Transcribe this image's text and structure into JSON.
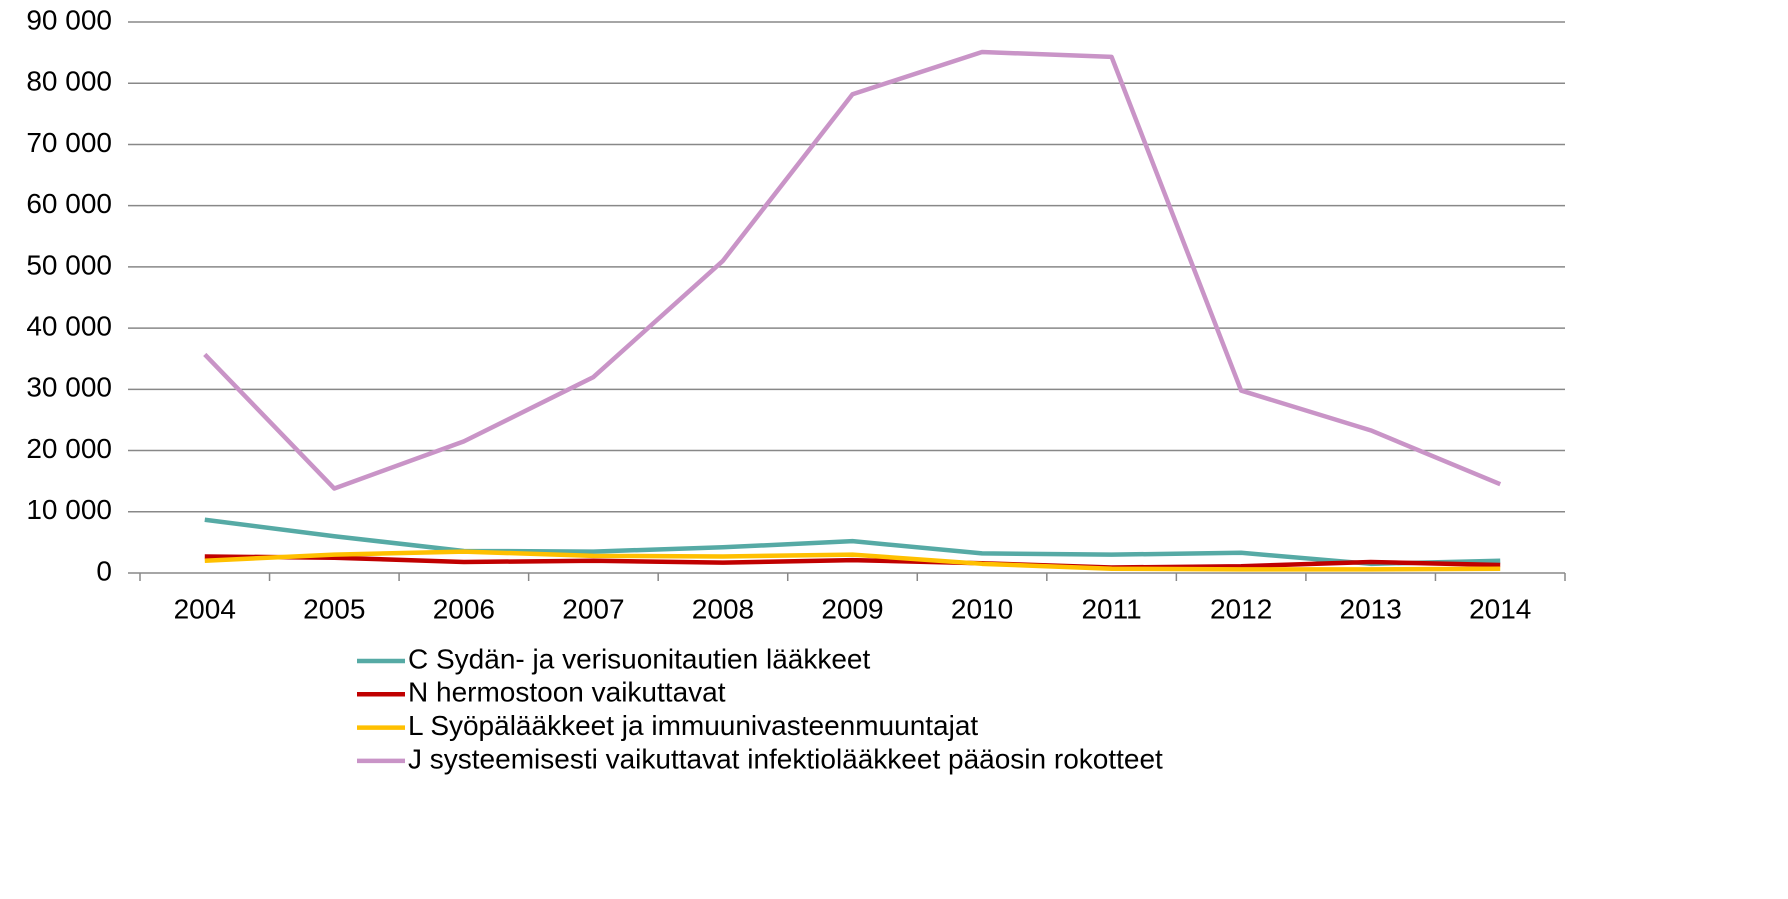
{
  "chart_data": {
    "type": "line",
    "categories": [
      "2004",
      "2005",
      "2006",
      "2007",
      "2008",
      "2009",
      "2010",
      "2011",
      "2012",
      "2013",
      "2014"
    ],
    "series": [
      {
        "name": "C Sydän- ja verisuonitautien lääkkeet",
        "color": "#56aaa5",
        "values": [
          8700,
          6000,
          3600,
          3500,
          4200,
          5200,
          3200,
          3000,
          3300,
          1500,
          2000
        ]
      },
      {
        "name": "N hermostoon vaikuttavat",
        "color": "#c00000",
        "values": [
          2700,
          2500,
          1800,
          2000,
          1700,
          2100,
          1600,
          900,
          1100,
          1800,
          1300
        ]
      },
      {
        "name": "L Syöpälääkkeet ja immuunivasteenmuuntajat",
        "color": "#ffc000",
        "values": [
          2000,
          3000,
          3500,
          2800,
          2700,
          3000,
          1500,
          700,
          600,
          600,
          700
        ]
      },
      {
        "name": "J systeemisesti vaikuttavat infektiolääkkeet pääosin rokotteet",
        "color": "#c994c7",
        "values": [
          35700,
          13800,
          21500,
          32000,
          51000,
          78200,
          85100,
          84300,
          29800,
          23300,
          14500
        ]
      }
    ],
    "ylim": [
      0,
      90000
    ],
    "yticks": [
      0,
      {
        "value": 10000,
        "label": "10 000"
      },
      {
        "value": 20000,
        "label": "20 000"
      },
      {
        "value": 30000,
        "label": "30 000"
      },
      {
        "value": 40000,
        "label": "40 000"
      },
      {
        "value": 50000,
        "label": "50 000"
      },
      {
        "value": 60000,
        "label": "60 000"
      },
      {
        "value": 70000,
        "label": "70 000"
      },
      {
        "value": 80000,
        "label": "80 000"
      },
      {
        "value": 90000,
        "label": "90 000"
      }
    ],
    "grid": true
  }
}
